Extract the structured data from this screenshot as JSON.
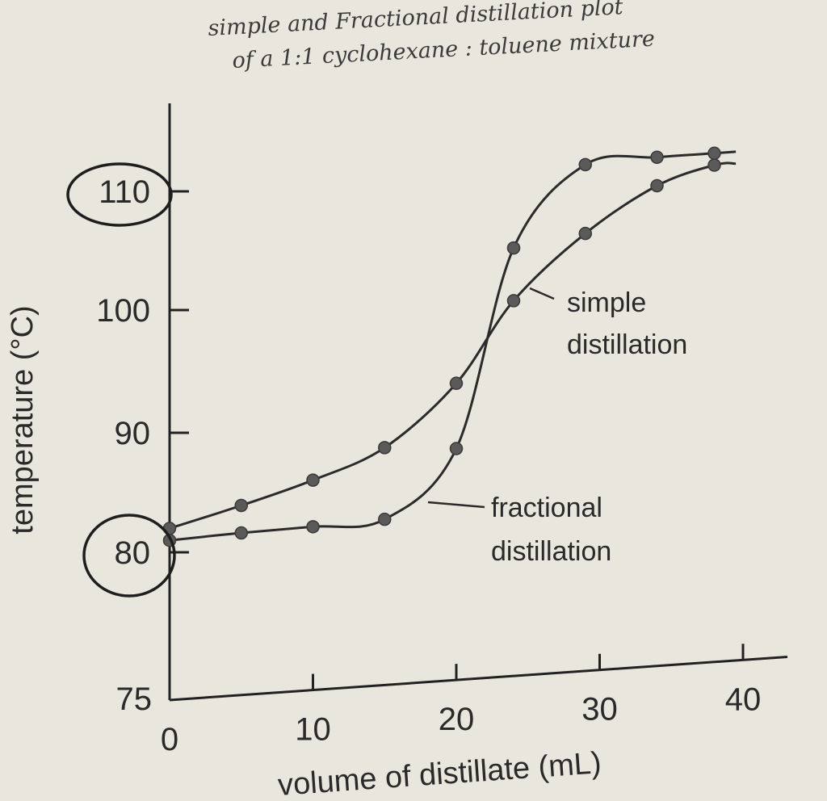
{
  "chart_data": {
    "type": "line",
    "title_lines": [
      "simple and Fractional distillation plot",
      "of a 1:1 cyclohexane : toluene mixture"
    ],
    "xlabel": "volume of distillate (mL)",
    "ylabel": "temperature (°C)",
    "xlim": [
      0,
      40
    ],
    "ylim": [
      75,
      110
    ],
    "xticks": [
      0,
      10,
      20,
      30,
      40
    ],
    "yticks": [
      75,
      80,
      90,
      100,
      110
    ],
    "circled_ticks": [
      80,
      110
    ],
    "grid": false,
    "legend": "none",
    "line_color": "#2b2b2b",
    "marker_color": "#5a5a5a",
    "circle_color": "#1e1e1e",
    "series": [
      {
        "name": "simple distillation",
        "x": [
          0,
          5,
          10,
          15,
          20,
          24,
          29,
          34,
          38
        ],
        "y": [
          82,
          83.5,
          85.2,
          87.5,
          92.4,
          98.8,
          104,
          107.6,
          109
        ]
      },
      {
        "name": "fractional distillation",
        "x": [
          0,
          5,
          10,
          15,
          20,
          24,
          29,
          34,
          38
        ],
        "y": [
          81,
          81.2,
          81.3,
          81.5,
          87,
          103.2,
          109.8,
          110,
          110
        ]
      }
    ]
  }
}
